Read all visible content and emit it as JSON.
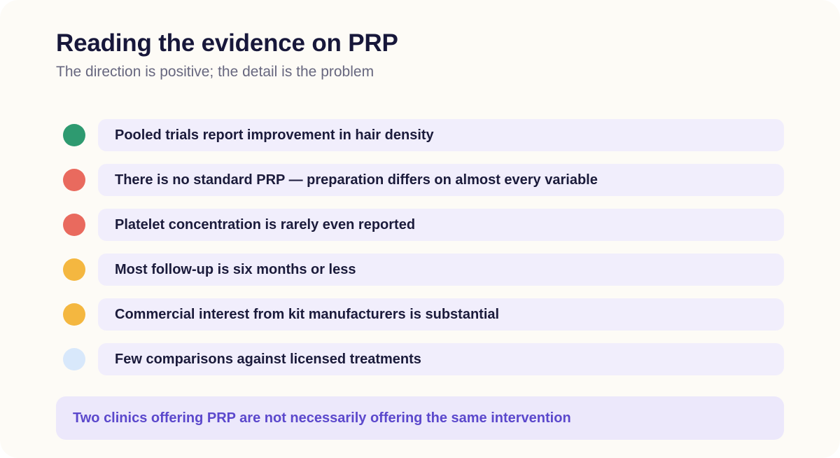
{
  "header": {
    "title": "Reading the evidence on PRP",
    "subtitle": "The direction is positive; the detail is the problem"
  },
  "colors": {
    "green": "#2e9a70",
    "red": "#e96a5e",
    "amber": "#f4b740",
    "pale_blue": "#d8e8fb",
    "pill_bg": "#f1eefc",
    "callout_bg": "#ece8fb",
    "callout_text": "#5b48cc",
    "card_bg": "#fdfbf6"
  },
  "items": [
    {
      "text": "Pooled trials report improvement in hair density",
      "status": "green"
    },
    {
      "text": "There is no standard PRP — preparation differs on almost every variable",
      "status": "red"
    },
    {
      "text": "Platelet concentration is rarely even reported",
      "status": "red"
    },
    {
      "text": "Most follow-up is six months or less",
      "status": "amber"
    },
    {
      "text": "Commercial interest from kit manufacturers is substantial",
      "status": "amber"
    },
    {
      "text": "Few comparisons against licensed treatments",
      "status": "pale_blue"
    }
  ],
  "callout": {
    "text": "Two clinics offering PRP are not necessarily offering the same intervention"
  }
}
